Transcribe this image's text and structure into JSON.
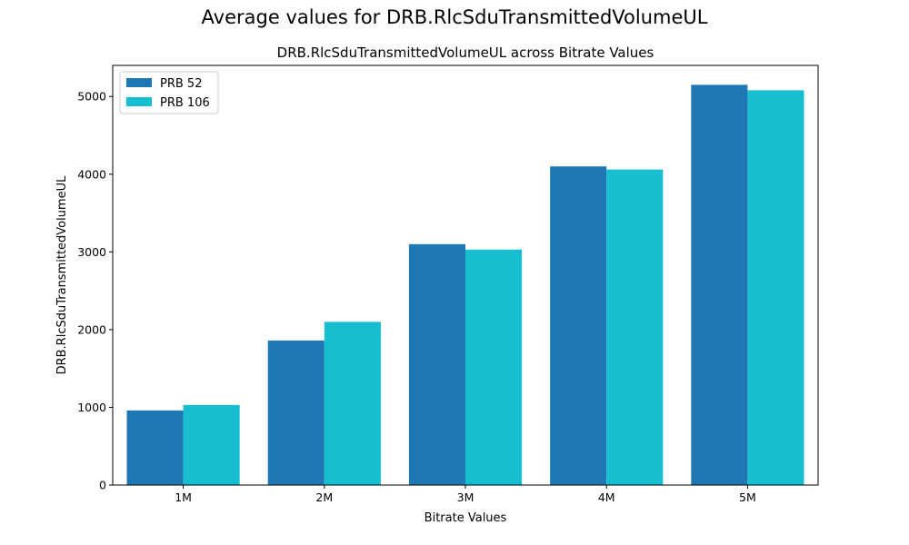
{
  "figure": {
    "suptitle": "Average values for DRB.RlcSduTransmittedVolumeUL"
  },
  "chart_data": {
    "type": "bar",
    "title": "DRB.RlcSduTransmittedVolumeUL across Bitrate Values",
    "xlabel": "Bitrate Values",
    "ylabel": "DRB.RlcSduTransmittedVolumeUL",
    "categories": [
      "1M",
      "2M",
      "3M",
      "4M",
      "5M"
    ],
    "ylim": [
      0,
      5400
    ],
    "yticks": [
      0,
      1000,
      2000,
      3000,
      4000,
      5000
    ],
    "grid": false,
    "legend_position": "top-left",
    "series": [
      {
        "name": "PRB 52",
        "color": "#1f77b4",
        "values": [
          960,
          1860,
          3100,
          4100,
          5150
        ]
      },
      {
        "name": "PRB 106",
        "color": "#17becf",
        "values": [
          1030,
          2100,
          3030,
          4060,
          5080
        ]
      }
    ]
  }
}
